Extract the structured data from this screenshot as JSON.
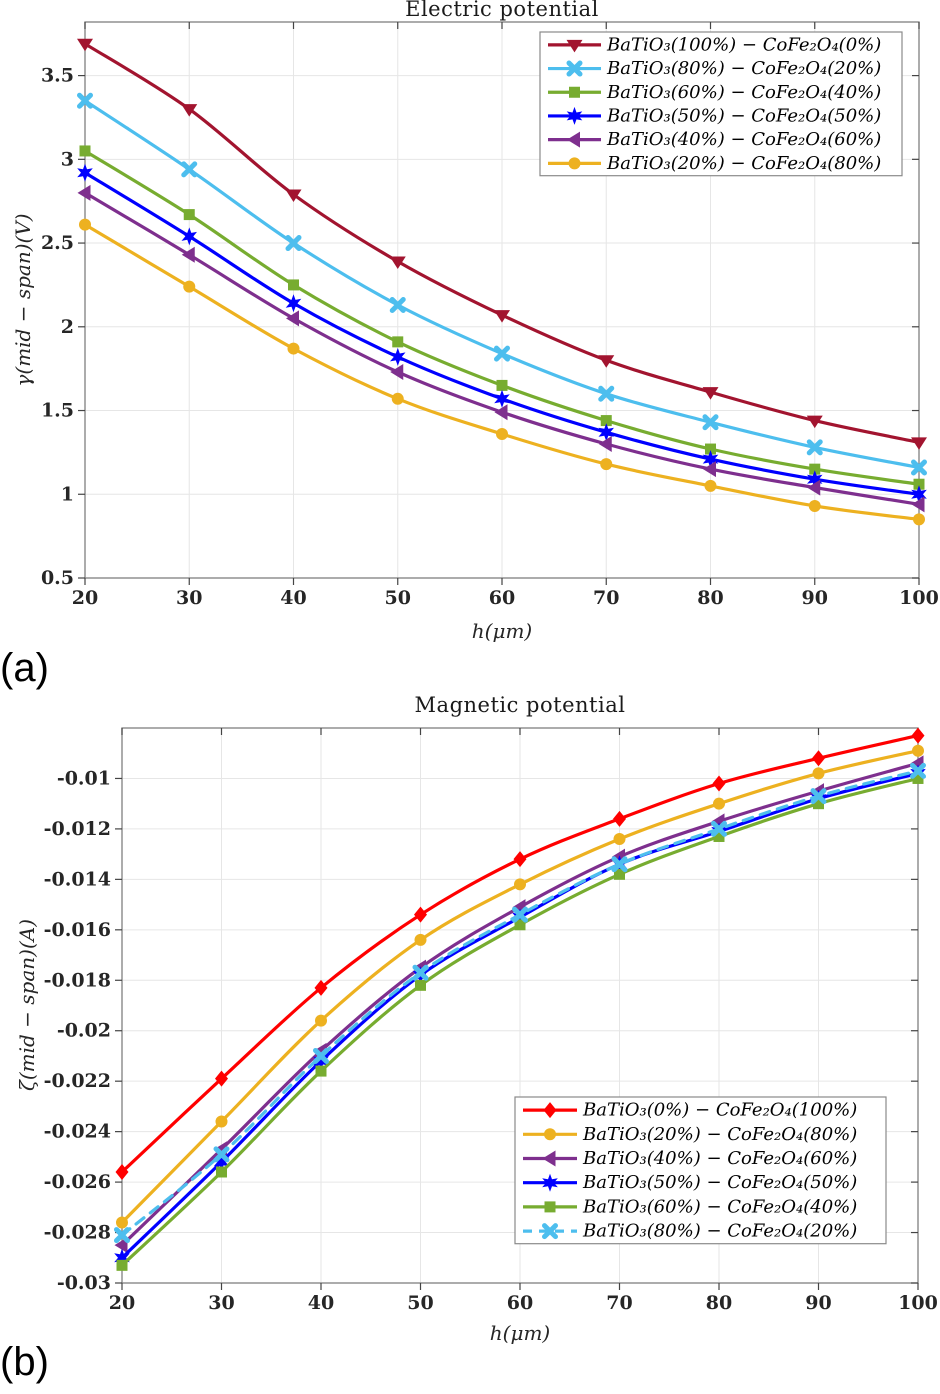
{
  "figure_labels": {
    "a": "(a)",
    "b": "(b)"
  },
  "palette": {
    "dark_red": "#A2142F",
    "bright_red": "#FF0000",
    "cyan": "#4DBEEE",
    "green": "#77AC30",
    "blue": "#0000FF",
    "purple": "#7E2F8E",
    "orange": "#EDB120",
    "axis_box": "#7f7f7f",
    "grid": "#E6E6E6",
    "tick": "#444444",
    "legend_border": "#8a8a8a"
  },
  "chart_data": [
    {
      "type": "line",
      "title": "Electric potential",
      "xlabel": "h(μm)",
      "ylabel": "γ(mid − span)(V)",
      "x": [
        20,
        30,
        40,
        50,
        60,
        70,
        80,
        90,
        100
      ],
      "xlim": [
        20,
        100
      ],
      "ylim": [
        0.5,
        3.82
      ],
      "xticks": [
        20,
        30,
        40,
        50,
        60,
        70,
        80,
        90,
        100
      ],
      "xtick_labels": [
        "20",
        "30",
        "40",
        "50",
        "60",
        "70",
        "80",
        "90",
        "100"
      ],
      "yticks": [
        0.5,
        1,
        1.5,
        2,
        2.5,
        3,
        3.5
      ],
      "ytick_labels": [
        "0.5",
        "1",
        "1.5",
        "2",
        "2.5",
        "3",
        "3.5"
      ],
      "grid": true,
      "legend_position": "northeast",
      "series": [
        {
          "name": "BaTiO₃(100%) − CoFe₂O₄(0%)",
          "color": "#A2142F",
          "marker": "triangle-down",
          "line": "solid",
          "values": [
            3.69,
            3.3,
            2.79,
            2.39,
            2.07,
            1.8,
            1.61,
            1.44,
            1.31
          ]
        },
        {
          "name": "BaTiO₃(80%) − CoFe₂O₄(20%)",
          "color": "#4DBEEE",
          "marker": "x",
          "line": "solid",
          "values": [
            3.35,
            2.94,
            2.5,
            2.13,
            1.84,
            1.6,
            1.43,
            1.28,
            1.16
          ]
        },
        {
          "name": "BaTiO₃(60%) − CoFe₂O₄(40%)",
          "color": "#77AC30",
          "marker": "square",
          "line": "solid",
          "values": [
            3.05,
            2.67,
            2.25,
            1.91,
            1.65,
            1.44,
            1.27,
            1.15,
            1.06
          ]
        },
        {
          "name": "BaTiO₃(50%) − CoFe₂O₄(50%)",
          "color": "#0000FF",
          "marker": "hexagram",
          "line": "solid",
          "values": [
            2.92,
            2.54,
            2.14,
            1.82,
            1.57,
            1.37,
            1.21,
            1.09,
            1.0
          ]
        },
        {
          "name": "BaTiO₃(40%) − CoFe₂O₄(60%)",
          "color": "#7E2F8E",
          "marker": "triangle-left",
          "line": "solid",
          "values": [
            2.8,
            2.43,
            2.05,
            1.73,
            1.49,
            1.3,
            1.15,
            1.04,
            0.94
          ]
        },
        {
          "name": "BaTiO₃(20%) − CoFe₂O₄(80%)",
          "color": "#EDB120",
          "marker": "circle",
          "line": "solid",
          "values": [
            2.61,
            2.24,
            1.87,
            1.57,
            1.36,
            1.18,
            1.05,
            0.93,
            0.85
          ]
        }
      ]
    },
    {
      "type": "line",
      "title": "Magnetic potential",
      "xlabel": "h(μm)",
      "ylabel": "ζ(mid − span)(A)",
      "x": [
        20,
        30,
        40,
        50,
        60,
        70,
        80,
        90,
        100
      ],
      "xlim": [
        20,
        100
      ],
      "ylim": [
        -0.03,
        -0.008
      ],
      "xticks": [
        20,
        30,
        40,
        50,
        60,
        70,
        80,
        90,
        100
      ],
      "xtick_labels": [
        "20",
        "30",
        "40",
        "50",
        "60",
        "70",
        "80",
        "90",
        "100"
      ],
      "yticks": [
        -0.03,
        -0.028,
        -0.026,
        -0.024,
        -0.022,
        -0.02,
        -0.018,
        -0.016,
        -0.014,
        -0.012,
        -0.01
      ],
      "ytick_labels": [
        "-0.03",
        "-0.028",
        "-0.026",
        "-0.024",
        "-0.022",
        "-0.02",
        "-0.018",
        "-0.016",
        "-0.014",
        "-0.012",
        "-0.01"
      ],
      "grid": true,
      "legend_position": "southeast",
      "series": [
        {
          "name": "BaTiO₃(0%) − CoFe₂O₄(100%)",
          "color": "#FF0000",
          "marker": "diamond",
          "line": "solid",
          "values": [
            -0.0256,
            -0.0219,
            -0.0183,
            -0.0154,
            -0.0132,
            -0.0116,
            -0.0102,
            -0.0092,
            -0.0083
          ]
        },
        {
          "name": "BaTiO₃(20%) − CoFe₂O₄(80%)",
          "color": "#EDB120",
          "marker": "circle",
          "line": "solid",
          "values": [
            -0.0276,
            -0.0236,
            -0.0196,
            -0.0164,
            -0.0142,
            -0.0124,
            -0.011,
            -0.0098,
            -0.0089
          ]
        },
        {
          "name": "BaTiO₃(40%) − CoFe₂O₄(60%)",
          "color": "#7E2F8E",
          "marker": "triangle-left",
          "line": "solid",
          "values": [
            -0.0285,
            -0.0247,
            -0.0208,
            -0.0175,
            -0.0151,
            -0.0131,
            -0.0117,
            -0.0105,
            -0.0094
          ]
        },
        {
          "name": "BaTiO₃(50%) − CoFe₂O₄(50%)",
          "color": "#0000FF",
          "marker": "hexagram",
          "line": "solid",
          "values": [
            -0.029,
            -0.0252,
            -0.0212,
            -0.0178,
            -0.0155,
            -0.0134,
            -0.0121,
            -0.0108,
            -0.0098
          ]
        },
        {
          "name": "BaTiO₃(60%) − CoFe₂O₄(40%)",
          "color": "#77AC30",
          "marker": "square",
          "line": "solid",
          "values": [
            -0.0293,
            -0.0256,
            -0.0216,
            -0.0182,
            -0.0158,
            -0.0138,
            -0.0123,
            -0.011,
            -0.01
          ]
        },
        {
          "name": "BaTiO₃(80%) − CoFe₂O₄(20%)",
          "color": "#4DBEEE",
          "marker": "x",
          "line": "dashed",
          "values": [
            -0.0281,
            -0.0249,
            -0.021,
            -0.0177,
            -0.0154,
            -0.0134,
            -0.012,
            -0.0107,
            -0.0097
          ]
        }
      ]
    }
  ]
}
